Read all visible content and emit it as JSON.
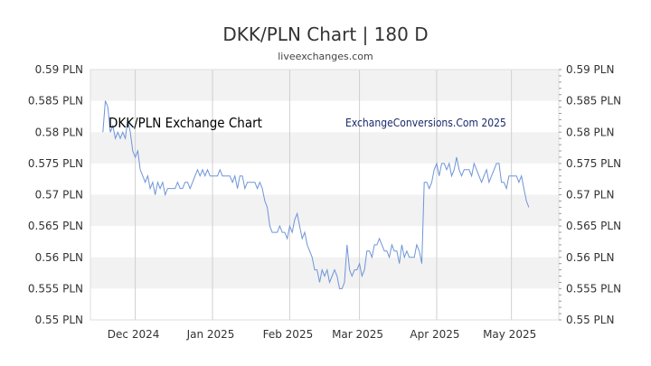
{
  "title": "DKK/PLN Chart | 180 D",
  "subtitle": "liveexchanges.com",
  "colors": {
    "line": "#6f95d8",
    "band": "#f2f2f2",
    "grid": "#d0d0d0",
    "axis": "#999999"
  },
  "chart_data": {
    "type": "line",
    "title": "DKK/PLN Chart | 180 D",
    "xlabel": "",
    "ylabel": "",
    "ylim": [
      0.55,
      0.59
    ],
    "y_ticks": [
      0.55,
      0.555,
      0.56,
      0.565,
      0.57,
      0.575,
      0.58,
      0.585,
      0.59
    ],
    "y_tick_labels": [
      "0.55 PLN",
      "0.555 PLN",
      "0.56 PLN",
      "0.565 PLN",
      "0.57 PLN",
      "0.575 PLN",
      "0.58 PLN",
      "0.585 PLN",
      "0.59 PLN"
    ],
    "x_month_labels": [
      "Dec 2024",
      "Jan 2025",
      "Feb 2025",
      "Mar 2025",
      "Apr 2025",
      "May 2025"
    ],
    "x_month_start_days": [
      18,
      49,
      80,
      108,
      139,
      169
    ],
    "xlim": [
      0,
      188
    ],
    "grid": true,
    "annotations": [
      "DKK/PLN Exchange Chart",
      "ExchangeConversions.Com 2025"
    ],
    "series": [
      {
        "values": [
          [
            5,
            0.58
          ],
          [
            6,
            0.585
          ],
          [
            7,
            0.584
          ],
          [
            8,
            0.58
          ],
          [
            9,
            0.581
          ],
          [
            10,
            0.579
          ],
          [
            11,
            0.58
          ],
          [
            12,
            0.579
          ],
          [
            13,
            0.58
          ],
          [
            14,
            0.579
          ],
          [
            15,
            0.582
          ],
          [
            16,
            0.58
          ],
          [
            17,
            0.577
          ],
          [
            18,
            0.576
          ],
          [
            19,
            0.577
          ],
          [
            20,
            0.574
          ],
          [
            21,
            0.573
          ],
          [
            22,
            0.572
          ],
          [
            23,
            0.573
          ],
          [
            24,
            0.571
          ],
          [
            25,
            0.572
          ],
          [
            26,
            0.57
          ],
          [
            27,
            0.572
          ],
          [
            28,
            0.571
          ],
          [
            29,
            0.572
          ],
          [
            30,
            0.57
          ],
          [
            31,
            0.571
          ],
          [
            32,
            0.571
          ],
          [
            33,
            0.571
          ],
          [
            34,
            0.571
          ],
          [
            35,
            0.572
          ],
          [
            36,
            0.571
          ],
          [
            37,
            0.571
          ],
          [
            38,
            0.572
          ],
          [
            39,
            0.572
          ],
          [
            40,
            0.571
          ],
          [
            41,
            0.572
          ],
          [
            42,
            0.573
          ],
          [
            43,
            0.574
          ],
          [
            44,
            0.573
          ],
          [
            45,
            0.574
          ],
          [
            46,
            0.573
          ],
          [
            47,
            0.574
          ],
          [
            48,
            0.573
          ],
          [
            49,
            0.573
          ],
          [
            50,
            0.573
          ],
          [
            51,
            0.573
          ],
          [
            52,
            0.574
          ],
          [
            53,
            0.573
          ],
          [
            54,
            0.573
          ],
          [
            55,
            0.573
          ],
          [
            56,
            0.573
          ],
          [
            57,
            0.572
          ],
          [
            58,
            0.573
          ],
          [
            59,
            0.571
          ],
          [
            60,
            0.573
          ],
          [
            61,
            0.573
          ],
          [
            62,
            0.571
          ],
          [
            63,
            0.572
          ],
          [
            64,
            0.572
          ],
          [
            65,
            0.572
          ],
          [
            66,
            0.572
          ],
          [
            67,
            0.571
          ],
          [
            68,
            0.572
          ],
          [
            69,
            0.571
          ],
          [
            70,
            0.569
          ],
          [
            71,
            0.568
          ],
          [
            72,
            0.565
          ],
          [
            73,
            0.564
          ],
          [
            74,
            0.564
          ],
          [
            75,
            0.564
          ],
          [
            76,
            0.565
          ],
          [
            77,
            0.564
          ],
          [
            78,
            0.564
          ],
          [
            79,
            0.563
          ],
          [
            80,
            0.565
          ],
          [
            81,
            0.564
          ],
          [
            82,
            0.566
          ],
          [
            83,
            0.567
          ],
          [
            84,
            0.565
          ],
          [
            85,
            0.563
          ],
          [
            86,
            0.564
          ],
          [
            87,
            0.562
          ],
          [
            88,
            0.561
          ],
          [
            89,
            0.56
          ],
          [
            90,
            0.558
          ],
          [
            91,
            0.558
          ],
          [
            92,
            0.556
          ],
          [
            93,
            0.558
          ],
          [
            94,
            0.557
          ],
          [
            95,
            0.558
          ],
          [
            96,
            0.556
          ],
          [
            97,
            0.557
          ],
          [
            98,
            0.558
          ],
          [
            99,
            0.557
          ],
          [
            100,
            0.555
          ],
          [
            101,
            0.555
          ],
          [
            102,
            0.556
          ],
          [
            103,
            0.562
          ],
          [
            104,
            0.558
          ],
          [
            105,
            0.557
          ],
          [
            106,
            0.558
          ],
          [
            107,
            0.558
          ],
          [
            108,
            0.559
          ],
          [
            109,
            0.557
          ],
          [
            110,
            0.558
          ],
          [
            111,
            0.561
          ],
          [
            112,
            0.561
          ],
          [
            113,
            0.56
          ],
          [
            114,
            0.562
          ],
          [
            115,
            0.562
          ],
          [
            116,
            0.563
          ],
          [
            117,
            0.562
          ],
          [
            118,
            0.561
          ],
          [
            119,
            0.561
          ],
          [
            120,
            0.56
          ],
          [
            121,
            0.562
          ],
          [
            122,
            0.561
          ],
          [
            123,
            0.561
          ],
          [
            124,
            0.559
          ],
          [
            125,
            0.562
          ],
          [
            126,
            0.56
          ],
          [
            127,
            0.561
          ],
          [
            128,
            0.56
          ],
          [
            129,
            0.56
          ],
          [
            130,
            0.56
          ],
          [
            131,
            0.562
          ],
          [
            132,
            0.561
          ],
          [
            133,
            0.559
          ],
          [
            134,
            0.572
          ],
          [
            135,
            0.572
          ],
          [
            136,
            0.571
          ],
          [
            137,
            0.572
          ],
          [
            138,
            0.574
          ],
          [
            139,
            0.575
          ],
          [
            140,
            0.573
          ],
          [
            141,
            0.575
          ],
          [
            142,
            0.575
          ],
          [
            143,
            0.574
          ],
          [
            144,
            0.575
          ],
          [
            145,
            0.573
          ],
          [
            146,
            0.574
          ],
          [
            147,
            0.576
          ],
          [
            148,
            0.574
          ],
          [
            149,
            0.573
          ],
          [
            150,
            0.574
          ],
          [
            151,
            0.574
          ],
          [
            152,
            0.574
          ],
          [
            153,
            0.573
          ],
          [
            154,
            0.575
          ],
          [
            155,
            0.574
          ],
          [
            156,
            0.573
          ],
          [
            157,
            0.572
          ],
          [
            158,
            0.573
          ],
          [
            159,
            0.574
          ],
          [
            160,
            0.572
          ],
          [
            161,
            0.573
          ],
          [
            162,
            0.574
          ],
          [
            163,
            0.575
          ],
          [
            164,
            0.575
          ],
          [
            165,
            0.572
          ],
          [
            166,
            0.572
          ],
          [
            167,
            0.571
          ],
          [
            168,
            0.573
          ],
          [
            169,
            0.573
          ],
          [
            170,
            0.573
          ],
          [
            171,
            0.573
          ],
          [
            172,
            0.572
          ],
          [
            173,
            0.573
          ],
          [
            174,
            0.571
          ],
          [
            175,
            0.569
          ],
          [
            176,
            0.568
          ]
        ]
      }
    ]
  }
}
